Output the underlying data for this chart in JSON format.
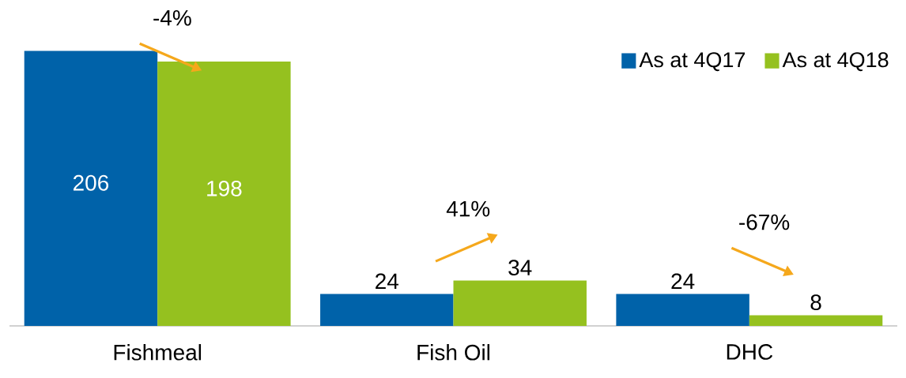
{
  "chart_data": {
    "type": "bar",
    "categories": [
      "Fishmeal",
      "Fish Oil",
      "DHC"
    ],
    "series": [
      {
        "name": "As at 4Q17",
        "color": "#0062a9",
        "values": [
          206,
          24,
          24
        ]
      },
      {
        "name": "As at 4Q18",
        "color": "#95c11f",
        "values": [
          198,
          34,
          8
        ]
      }
    ],
    "data_labels": true,
    "legend": "top right",
    "annotations": [
      "-4%",
      "41%",
      "-67%"
    ]
  }
}
